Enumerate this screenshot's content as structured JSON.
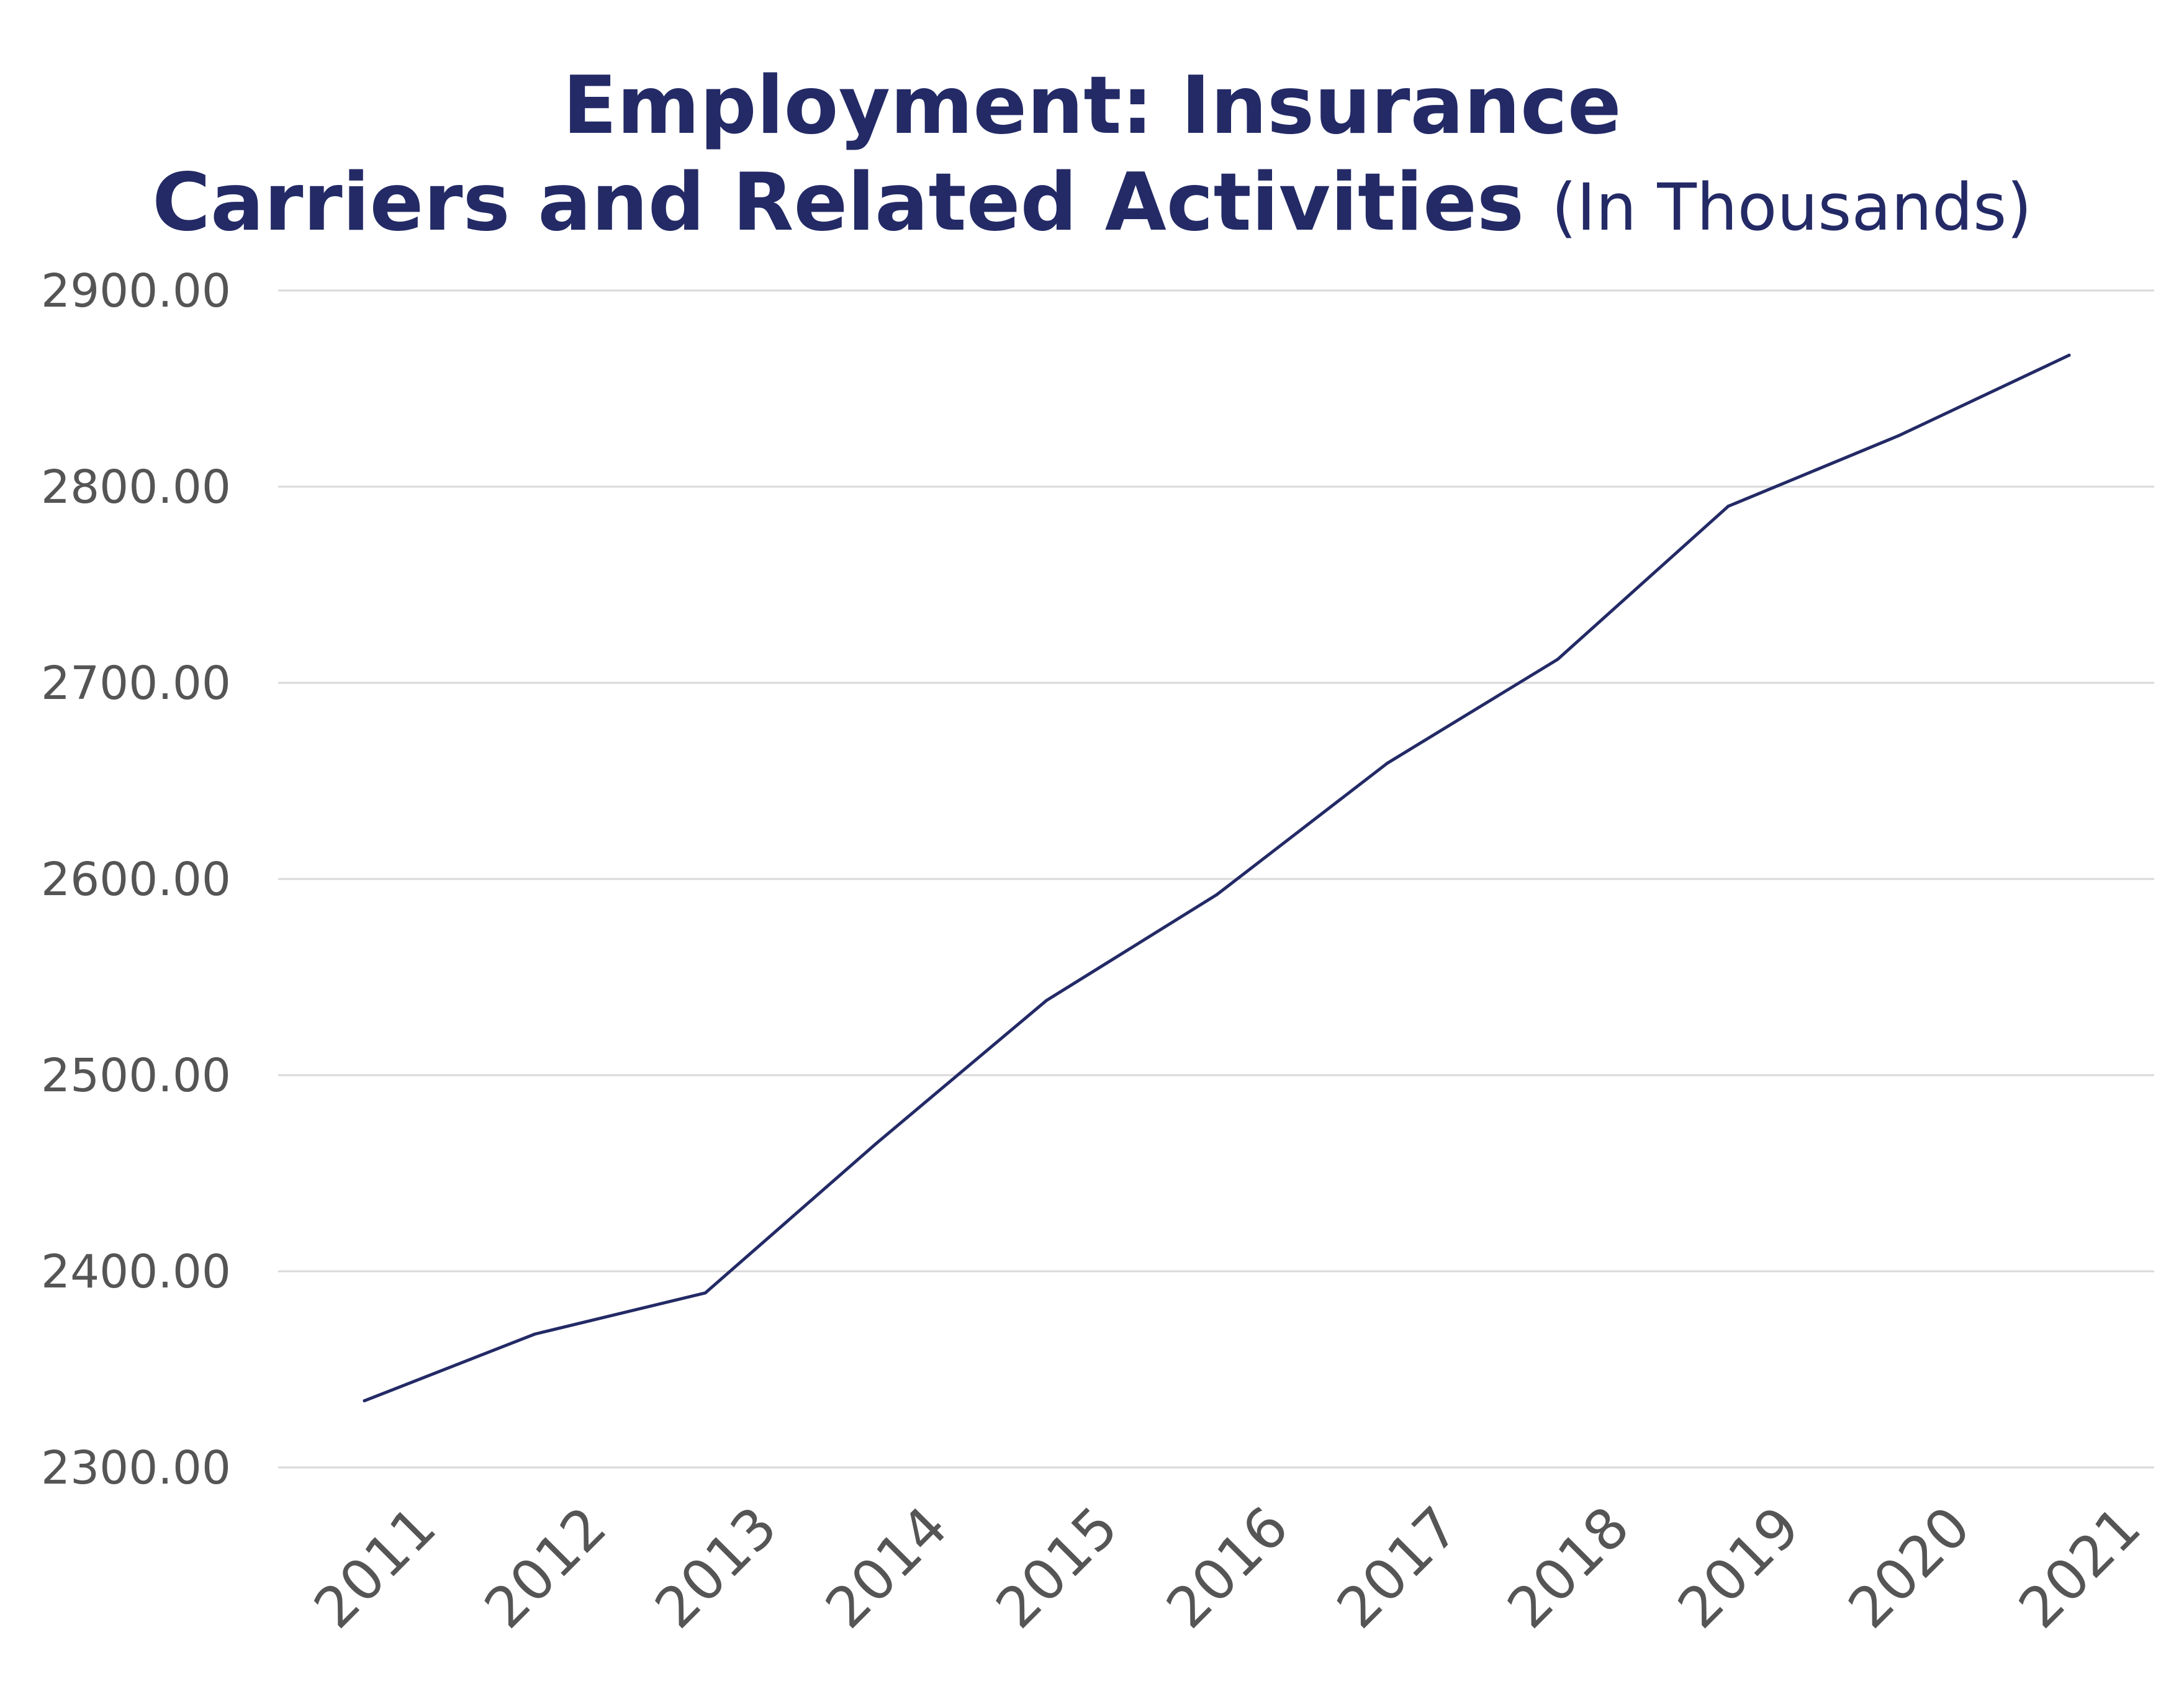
{
  "chart_data": {
    "type": "line",
    "title_line1": "Employment: Insurance",
    "title_line2": "Carriers and Related Activities",
    "title_unit": "(In Thousands)",
    "xlabel": "",
    "ylabel": "",
    "ylim": [
      2300,
      2900
    ],
    "yticks": [
      "2300.00",
      "2400.00",
      "2500.00",
      "2600.00",
      "2700.00",
      "2800.00",
      "2900.00"
    ],
    "categories": [
      "2011",
      "2012",
      "2013",
      "2014",
      "2015",
      "2016",
      "2017",
      "2018",
      "2019",
      "2020",
      "2021"
    ],
    "series": [
      {
        "values": [
          2334,
          2368,
          2389,
          2465,
          2538,
          2592,
          2659,
          2712,
          2790,
          2826,
          2867
        ],
        "color": "#232a66"
      }
    ],
    "grid": true,
    "legend": "none"
  }
}
